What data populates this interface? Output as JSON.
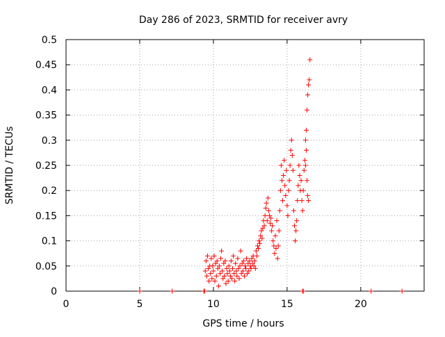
{
  "chart_data": {
    "type": "scatter",
    "title": "Day 286 of 2023, SRMTID for receiver avry",
    "xlabel": "GPS time / hours",
    "ylabel": "SRMTID / TECUs",
    "xlim": [
      0,
      24.3
    ],
    "ylim": [
      0,
      0.5
    ],
    "x_ticks": [
      0,
      5,
      10,
      15,
      20
    ],
    "y_ticks": [
      0,
      0.05,
      0.1,
      0.15,
      0.2,
      0.25,
      0.3,
      0.35,
      0.4,
      0.45,
      0.5
    ],
    "x_tick_labels": [
      "0",
      "5",
      "10",
      "15",
      "20"
    ],
    "y_tick_labels": [
      "0",
      "0.05",
      "0.1",
      "0.15",
      "0.2",
      "0.25",
      "0.3",
      "0.35",
      "0.4",
      "0.45",
      "0.5"
    ],
    "grid": true,
    "marker": "+",
    "series": [
      {
        "name": "SRMTID",
        "color": "#ff0000",
        "points": [
          [
            5.0,
            0.0
          ],
          [
            7.2,
            0.0
          ],
          [
            9.35,
            0.0
          ],
          [
            9.4,
            0.0
          ],
          [
            16.05,
            0.0
          ],
          [
            16.1,
            0.0
          ],
          [
            20.7,
            0.0
          ],
          [
            22.8,
            0.0
          ],
          [
            9.45,
            0.04
          ],
          [
            9.5,
            0.06
          ],
          [
            9.55,
            0.03
          ],
          [
            9.6,
            0.07
          ],
          [
            9.65,
            0.045
          ],
          [
            9.7,
            0.02
          ],
          [
            9.75,
            0.05
          ],
          [
            9.8,
            0.035
          ],
          [
            9.85,
            0.065
          ],
          [
            9.9,
            0.025
          ],
          [
            9.95,
            0.05
          ],
          [
            10.0,
            0.04
          ],
          [
            10.05,
            0.07
          ],
          [
            10.1,
            0.02
          ],
          [
            10.15,
            0.055
          ],
          [
            10.2,
            0.03
          ],
          [
            10.25,
            0.06
          ],
          [
            10.3,
            0.045
          ],
          [
            10.35,
            0.01
          ],
          [
            10.4,
            0.05
          ],
          [
            10.45,
            0.035
          ],
          [
            10.5,
            0.065
          ],
          [
            10.55,
            0.08
          ],
          [
            10.6,
            0.04
          ],
          [
            10.65,
            0.025
          ],
          [
            10.7,
            0.055
          ],
          [
            10.75,
            0.03
          ],
          [
            10.8,
            0.06
          ],
          [
            10.85,
            0.015
          ],
          [
            10.9,
            0.045
          ],
          [
            10.95,
            0.035
          ],
          [
            11.0,
            0.02
          ],
          [
            11.05,
            0.05
          ],
          [
            11.1,
            0.04
          ],
          [
            11.15,
            0.03
          ],
          [
            11.2,
            0.06
          ],
          [
            11.25,
            0.025
          ],
          [
            11.3,
            0.045
          ],
          [
            11.35,
            0.07
          ],
          [
            11.4,
            0.035
          ],
          [
            11.45,
            0.02
          ],
          [
            11.5,
            0.055
          ],
          [
            11.55,
            0.04
          ],
          [
            11.6,
            0.03
          ],
          [
            11.65,
            0.065
          ],
          [
            11.7,
            0.045
          ],
          [
            11.75,
            0.025
          ],
          [
            11.8,
            0.05
          ],
          [
            11.85,
            0.08
          ],
          [
            11.9,
            0.035
          ],
          [
            11.95,
            0.055
          ],
          [
            12.0,
            0.04
          ],
          [
            12.05,
            0.06
          ],
          [
            12.1,
            0.03
          ],
          [
            12.15,
            0.05
          ],
          [
            12.2,
            0.045
          ],
          [
            12.25,
            0.065
          ],
          [
            12.3,
            0.035
          ],
          [
            12.35,
            0.055
          ],
          [
            12.4,
            0.04
          ],
          [
            12.45,
            0.06
          ],
          [
            12.5,
            0.05
          ],
          [
            12.55,
            0.045
          ],
          [
            12.6,
            0.065
          ],
          [
            12.65,
            0.055
          ],
          [
            12.7,
            0.07
          ],
          [
            12.75,
            0.05
          ],
          [
            12.8,
            0.06
          ],
          [
            12.85,
            0.045
          ],
          [
            12.9,
            0.08
          ],
          [
            12.95,
            0.07
          ],
          [
            13.0,
            0.09
          ],
          [
            13.05,
            0.085
          ],
          [
            13.1,
            0.1
          ],
          [
            13.15,
            0.095
          ],
          [
            13.2,
            0.11
          ],
          [
            13.25,
            0.12
          ],
          [
            13.3,
            0.105
          ],
          [
            13.35,
            0.125
          ],
          [
            13.4,
            0.14
          ],
          [
            13.45,
            0.13
          ],
          [
            13.5,
            0.15
          ],
          [
            13.55,
            0.165
          ],
          [
            13.6,
            0.175
          ],
          [
            13.65,
            0.14
          ],
          [
            13.7,
            0.185
          ],
          [
            13.75,
            0.16
          ],
          [
            13.8,
            0.15
          ],
          [
            13.85,
            0.135
          ],
          [
            13.9,
            0.145
          ],
          [
            13.95,
            0.12
          ],
          [
            14.0,
            0.13
          ],
          [
            14.05,
            0.1
          ],
          [
            14.1,
            0.09
          ],
          [
            14.15,
            0.075
          ],
          [
            14.2,
            0.11
          ],
          [
            14.25,
            0.085
          ],
          [
            14.3,
            0.14
          ],
          [
            14.35,
            0.065
          ],
          [
            14.4,
            0.09
          ],
          [
            14.45,
            0.12
          ],
          [
            14.5,
            0.16
          ],
          [
            14.55,
            0.2
          ],
          [
            14.6,
            0.25
          ],
          [
            14.65,
            0.22
          ],
          [
            14.7,
            0.18
          ],
          [
            14.75,
            0.23
          ],
          [
            14.8,
            0.26
          ],
          [
            14.85,
            0.21
          ],
          [
            14.9,
            0.19
          ],
          [
            14.95,
            0.24
          ],
          [
            15.0,
            0.17
          ],
          [
            15.05,
            0.15
          ],
          [
            15.1,
            0.2
          ],
          [
            15.15,
            0.22
          ],
          [
            15.2,
            0.25
          ],
          [
            15.25,
            0.28
          ],
          [
            15.3,
            0.3
          ],
          [
            15.35,
            0.27
          ],
          [
            15.4,
            0.24
          ],
          [
            15.45,
            0.16
          ],
          [
            15.5,
            0.13
          ],
          [
            15.55,
            0.1
          ],
          [
            15.6,
            0.12
          ],
          [
            15.65,
            0.14
          ],
          [
            15.7,
            0.18
          ],
          [
            15.75,
            0.21
          ],
          [
            15.8,
            0.25
          ],
          [
            15.85,
            0.23
          ],
          [
            15.9,
            0.2
          ],
          [
            15.95,
            0.22
          ],
          [
            16.0,
            0.18
          ],
          [
            16.05,
            0.16
          ],
          [
            16.1,
            0.2
          ],
          [
            16.15,
            0.24
          ],
          [
            16.2,
            0.26
          ],
          [
            16.25,
            0.3
          ],
          [
            16.3,
            0.32
          ],
          [
            16.35,
            0.36
          ],
          [
            16.4,
            0.39
          ],
          [
            16.45,
            0.41
          ],
          [
            16.5,
            0.42
          ],
          [
            16.55,
            0.46
          ],
          [
            16.3,
            0.28
          ],
          [
            16.25,
            0.25
          ],
          [
            16.35,
            0.22
          ],
          [
            16.4,
            0.19
          ],
          [
            16.45,
            0.18
          ]
        ]
      }
    ]
  }
}
